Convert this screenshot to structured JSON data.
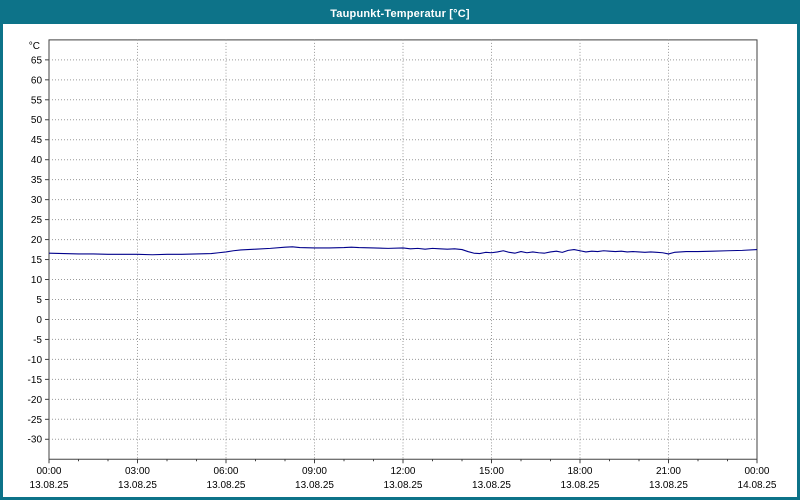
{
  "window": {
    "title": "Taupunkt-Temperatur [°C]"
  },
  "colors": {
    "titlebar": "#0d7389",
    "border": "#0d7389",
    "plot_background": "#ffffff",
    "plot_border": "#404040",
    "grid": "#9a9a9a",
    "tick_text": "#000000",
    "line": "#00008b"
  },
  "chart_data": {
    "type": "line",
    "title": "Taupunkt-Temperatur [°C]",
    "ylabel": "°C",
    "xlabel": "",
    "ylim": [
      -35,
      70
    ],
    "ytick_step": 5,
    "yticks": [
      65,
      60,
      55,
      50,
      45,
      40,
      35,
      30,
      25,
      20,
      15,
      10,
      5,
      0,
      -5,
      -10,
      -15,
      -20,
      -25,
      -30
    ],
    "x_range": [
      0,
      24
    ],
    "grid": "dotted",
    "legend_position": "none",
    "xticks": [
      {
        "hour": 0,
        "time": "00:00",
        "date": "13.08.25"
      },
      {
        "hour": 3,
        "time": "03:00",
        "date": "13.08.25"
      },
      {
        "hour": 6,
        "time": "06:00",
        "date": "13.08.25"
      },
      {
        "hour": 9,
        "time": "09:00",
        "date": "13.08.25"
      },
      {
        "hour": 12,
        "time": "12:00",
        "date": "13.08.25"
      },
      {
        "hour": 15,
        "time": "15:00",
        "date": "13.08.25"
      },
      {
        "hour": 18,
        "time": "18:00",
        "date": "13.08.25"
      },
      {
        "hour": 21,
        "time": "21:00",
        "date": "13.08.25"
      },
      {
        "hour": 24,
        "time": "00:00",
        "date": "14.08.25"
      }
    ],
    "series": [
      {
        "name": "Taupunkt-Temperatur",
        "color": "#00008b",
        "points": [
          {
            "h": 0.0,
            "v": 16.6
          },
          {
            "h": 0.5,
            "v": 16.5
          },
          {
            "h": 1.0,
            "v": 16.4
          },
          {
            "h": 1.5,
            "v": 16.4
          },
          {
            "h": 2.0,
            "v": 16.3
          },
          {
            "h": 2.5,
            "v": 16.3
          },
          {
            "h": 3.0,
            "v": 16.3
          },
          {
            "h": 3.5,
            "v": 16.2
          },
          {
            "h": 4.0,
            "v": 16.3
          },
          {
            "h": 4.5,
            "v": 16.3
          },
          {
            "h": 5.0,
            "v": 16.4
          },
          {
            "h": 5.5,
            "v": 16.5
          },
          {
            "h": 5.75,
            "v": 16.7
          },
          {
            "h": 6.0,
            "v": 16.9
          },
          {
            "h": 6.25,
            "v": 17.2
          },
          {
            "h": 6.5,
            "v": 17.4
          },
          {
            "h": 7.0,
            "v": 17.6
          },
          {
            "h": 7.5,
            "v": 17.8
          },
          {
            "h": 8.0,
            "v": 18.1
          },
          {
            "h": 8.25,
            "v": 18.2
          },
          {
            "h": 8.5,
            "v": 18.0
          },
          {
            "h": 9.0,
            "v": 17.9
          },
          {
            "h": 9.5,
            "v": 17.9
          },
          {
            "h": 10.0,
            "v": 18.0
          },
          {
            "h": 10.25,
            "v": 18.1
          },
          {
            "h": 10.5,
            "v": 18.0
          },
          {
            "h": 11.0,
            "v": 17.9
          },
          {
            "h": 11.5,
            "v": 17.8
          },
          {
            "h": 12.0,
            "v": 17.9
          },
          {
            "h": 12.25,
            "v": 17.7
          },
          {
            "h": 12.5,
            "v": 17.8
          },
          {
            "h": 12.75,
            "v": 17.6
          },
          {
            "h": 13.0,
            "v": 17.8
          },
          {
            "h": 13.25,
            "v": 17.7
          },
          {
            "h": 13.5,
            "v": 17.6
          },
          {
            "h": 13.75,
            "v": 17.7
          },
          {
            "h": 14.0,
            "v": 17.5
          },
          {
            "h": 14.2,
            "v": 17.0
          },
          {
            "h": 14.4,
            "v": 16.6
          },
          {
            "h": 14.6,
            "v": 16.5
          },
          {
            "h": 14.8,
            "v": 16.8
          },
          {
            "h": 15.0,
            "v": 16.7
          },
          {
            "h": 15.2,
            "v": 16.9
          },
          {
            "h": 15.4,
            "v": 17.2
          },
          {
            "h": 15.6,
            "v": 16.8
          },
          {
            "h": 15.8,
            "v": 16.6
          },
          {
            "h": 16.0,
            "v": 17.0
          },
          {
            "h": 16.2,
            "v": 16.7
          },
          {
            "h": 16.4,
            "v": 16.9
          },
          {
            "h": 16.6,
            "v": 16.7
          },
          {
            "h": 16.8,
            "v": 16.6
          },
          {
            "h": 17.0,
            "v": 16.9
          },
          {
            "h": 17.2,
            "v": 17.1
          },
          {
            "h": 17.4,
            "v": 16.8
          },
          {
            "h": 17.6,
            "v": 17.3
          },
          {
            "h": 17.8,
            "v": 17.5
          },
          {
            "h": 18.0,
            "v": 17.2
          },
          {
            "h": 18.2,
            "v": 16.9
          },
          {
            "h": 18.4,
            "v": 17.1
          },
          {
            "h": 18.6,
            "v": 17.0
          },
          {
            "h": 18.8,
            "v": 17.2
          },
          {
            "h": 19.0,
            "v": 17.1
          },
          {
            "h": 19.2,
            "v": 17.0
          },
          {
            "h": 19.4,
            "v": 17.1
          },
          {
            "h": 19.6,
            "v": 16.9
          },
          {
            "h": 19.8,
            "v": 17.0
          },
          {
            "h": 20.0,
            "v": 16.9
          },
          {
            "h": 20.2,
            "v": 16.8
          },
          {
            "h": 20.4,
            "v": 16.9
          },
          {
            "h": 20.6,
            "v": 16.8
          },
          {
            "h": 20.8,
            "v": 16.7
          },
          {
            "h": 21.0,
            "v": 16.4
          },
          {
            "h": 21.2,
            "v": 16.8
          },
          {
            "h": 21.4,
            "v": 16.9
          },
          {
            "h": 21.6,
            "v": 17.0
          },
          {
            "h": 22.0,
            "v": 17.0
          },
          {
            "h": 22.5,
            "v": 17.1
          },
          {
            "h": 23.0,
            "v": 17.2
          },
          {
            "h": 23.5,
            "v": 17.3
          },
          {
            "h": 24.0,
            "v": 17.5
          }
        ]
      }
    ]
  }
}
